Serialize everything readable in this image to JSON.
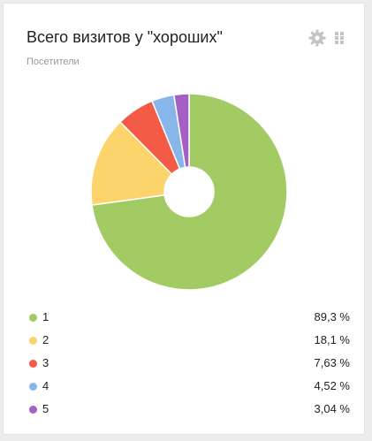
{
  "widget": {
    "title": "Всего визитов у \"хороших\"",
    "subtitle": "Посетители",
    "icons": {
      "settings": "gear-icon",
      "drag": "drag-handle-icon"
    }
  },
  "chart_data": {
    "type": "pie",
    "donut": true,
    "categories": [
      "1",
      "2",
      "3",
      "4",
      "5"
    ],
    "values": [
      89.3,
      18.1,
      7.63,
      4.52,
      3.04
    ],
    "value_labels": [
      "89,3 %",
      "18,1 %",
      "7,63 %",
      "4,52 %",
      "3,04 %"
    ],
    "colors": [
      "#a2cc63",
      "#fbd46b",
      "#f35b46",
      "#87b7ea",
      "#a460c5"
    ],
    "legend_placement": "bottom"
  }
}
